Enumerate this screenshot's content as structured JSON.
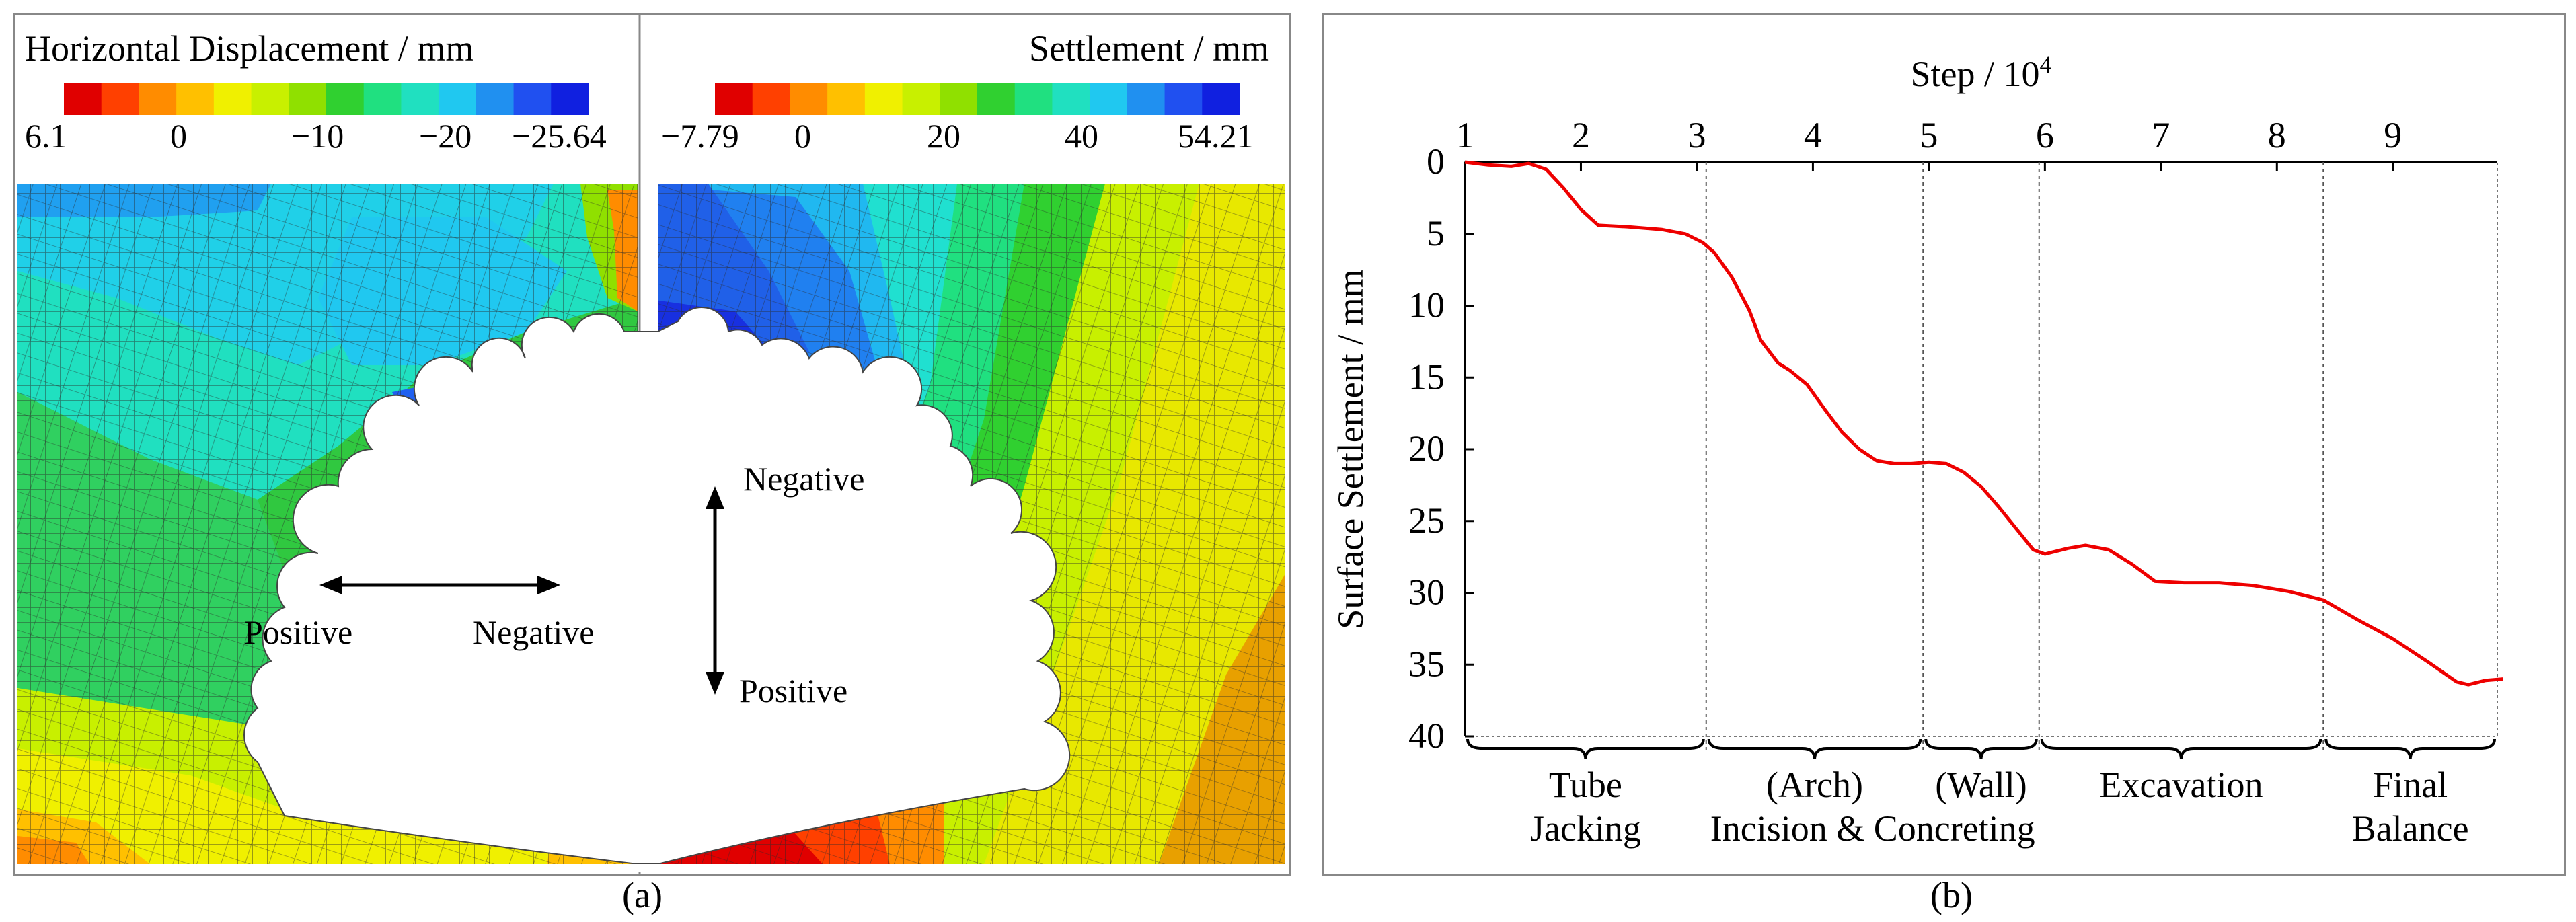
{
  "panel_a": {
    "left": {
      "title": "Horizontal Displacement / mm",
      "colorbar": [
        "#e00000",
        "#ff4000",
        "#ff8c00",
        "#ffc000",
        "#f0f000",
        "#c8f000",
        "#90e000",
        "#30d030",
        "#20e080",
        "#20e0c0",
        "#20c8f0",
        "#2090f0",
        "#2050f0",
        "#1020e0"
      ],
      "ticks": [
        "6.1",
        "0",
        "−10",
        "−20",
        "−25.64"
      ],
      "arrow_left_label": "Positive",
      "arrow_right_label": "Negative"
    },
    "right": {
      "title": "Settlement / mm",
      "colorbar": [
        "#e00000",
        "#ff4000",
        "#ff8c00",
        "#ffc000",
        "#f0f000",
        "#c8f000",
        "#90e000",
        "#30d030",
        "#20e080",
        "#20e0c0",
        "#20c8f0",
        "#2090f0",
        "#2050f0",
        "#1020e0"
      ],
      "ticks": [
        "−7.79",
        "0",
        "20",
        "40",
        "54.21"
      ],
      "arrow_top_label": "Negative",
      "arrow_bottom_label": "Positive"
    },
    "caption": "(a)"
  },
  "panel_b": {
    "caption": "(b)"
  },
  "chart_data": {
    "type": "line",
    "title": "",
    "x2label": "Step / 10",
    "x2label_sup": "4",
    "ylabel": "Surface Settlement / mm",
    "x_ticks": [
      1,
      2,
      3,
      4,
      5,
      6,
      7,
      8,
      9
    ],
    "x_range": [
      1,
      9.9
    ],
    "y_ticks": [
      0,
      5,
      10,
      15,
      20,
      25,
      30,
      35,
      40
    ],
    "y_range": [
      0,
      40
    ],
    "y_inverted": true,
    "stage_boundaries": [
      3.08,
      4.95,
      5.95,
      8.4
    ],
    "stages": [
      {
        "line1": "Tube",
        "line2": "Jacking",
        "from": 1,
        "to": 3.08
      },
      {
        "line1": "(Arch)",
        "line2": "",
        "from": 3.08,
        "to": 4.95
      },
      {
        "line1": "(Wall)",
        "line2": "",
        "from": 4.95,
        "to": 5.95
      },
      {
        "line1": "Excavation",
        "line2": "",
        "from": 5.95,
        "to": 8.4
      },
      {
        "line1": "Final",
        "line2": "Balance",
        "from": 8.4,
        "to": 9.9
      }
    ],
    "shared_stage_label": "Incision & Concreting",
    "series": [
      {
        "name": "Surface Settlement",
        "color": "#ee0000",
        "x": [
          1.0,
          1.2,
          1.4,
          1.55,
          1.7,
          1.85,
          2.0,
          2.15,
          2.4,
          2.7,
          2.9,
          3.05,
          3.15,
          3.3,
          3.45,
          3.55,
          3.7,
          3.8,
          3.95,
          4.1,
          4.25,
          4.4,
          4.55,
          4.7,
          4.85,
          5.0,
          5.15,
          5.3,
          5.45,
          5.6,
          5.75,
          5.9,
          6.0,
          6.2,
          6.35,
          6.55,
          6.75,
          6.95,
          7.2,
          7.5,
          7.8,
          8.1,
          8.4,
          8.7,
          9.0,
          9.3,
          9.55,
          9.65,
          9.8,
          9.95
        ],
        "y": [
          0.0,
          0.2,
          0.3,
          0.1,
          0.5,
          1.8,
          3.3,
          4.4,
          4.5,
          4.7,
          5.0,
          5.6,
          6.3,
          8.0,
          10.3,
          12.4,
          14.0,
          14.5,
          15.5,
          17.2,
          18.8,
          20.0,
          20.8,
          21.0,
          21.0,
          20.9,
          21.0,
          21.6,
          22.6,
          24.0,
          25.5,
          27.0,
          27.3,
          26.9,
          26.7,
          27.0,
          28.0,
          29.2,
          29.3,
          29.3,
          29.5,
          29.9,
          30.5,
          31.9,
          33.2,
          34.8,
          36.2,
          36.4,
          36.1,
          36.0
        ]
      }
    ]
  }
}
